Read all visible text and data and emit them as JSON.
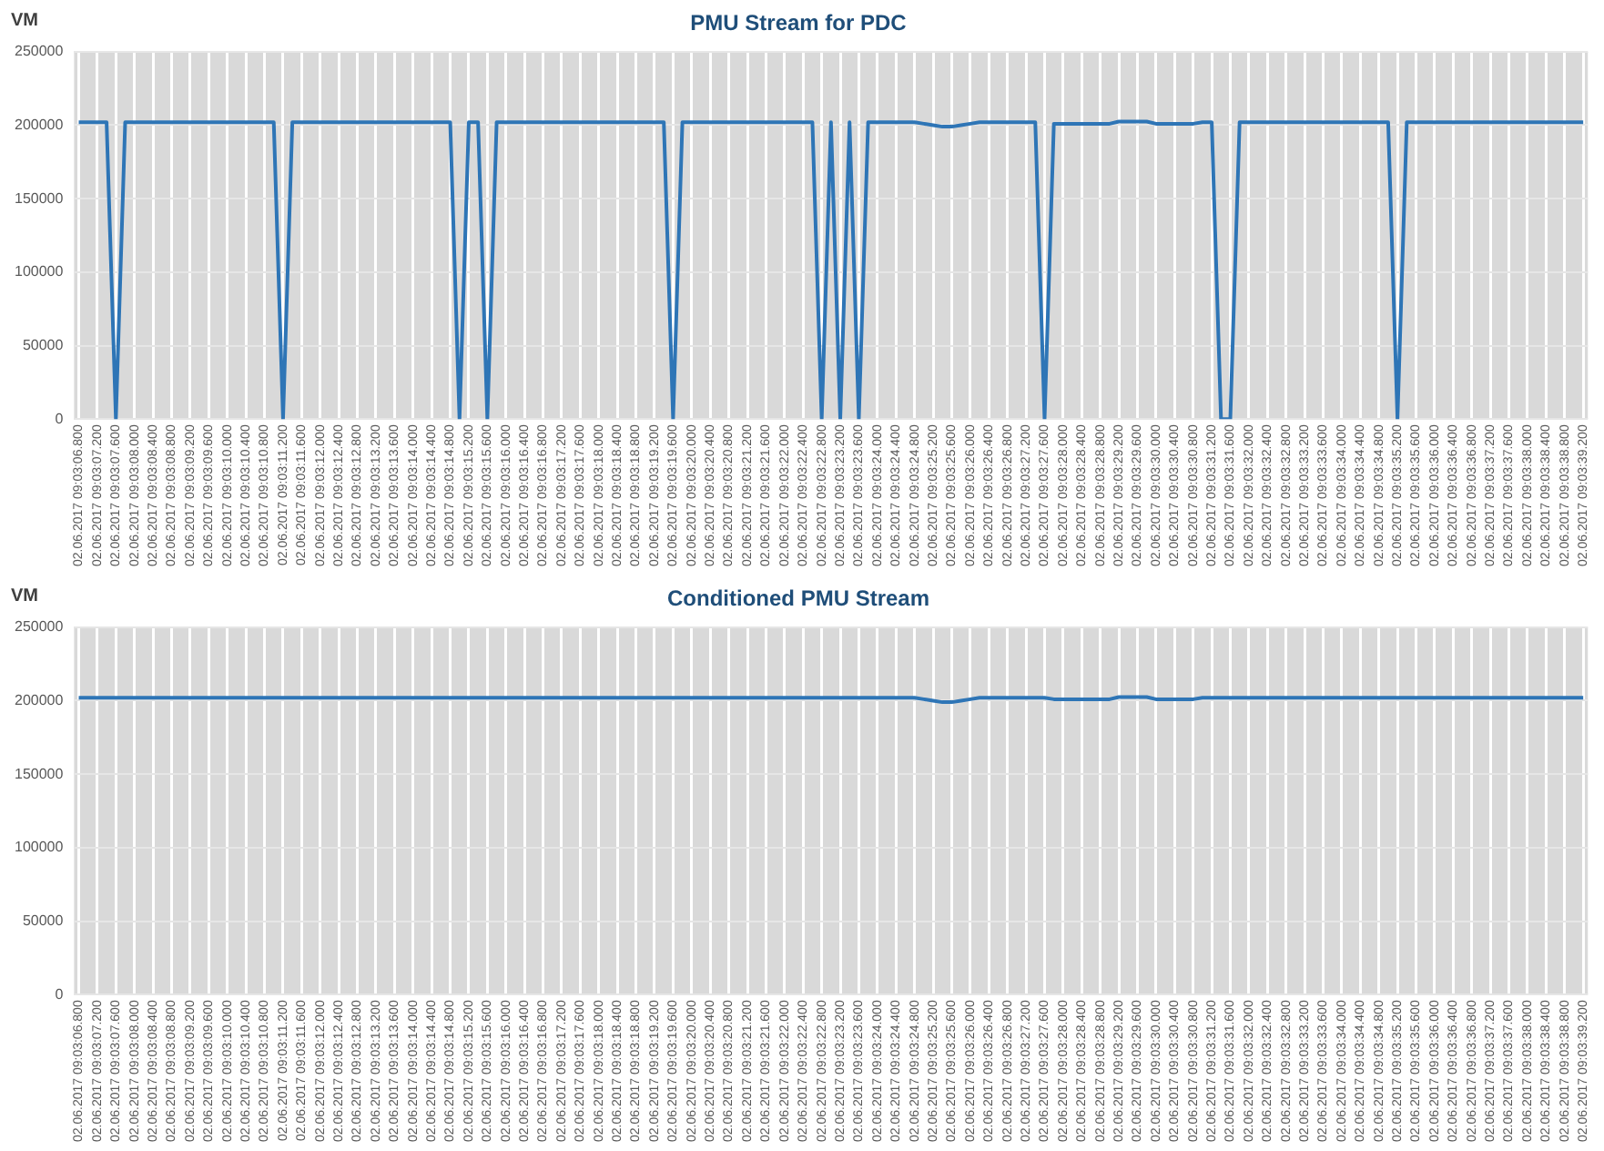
{
  "chart_data": [
    {
      "type": "line",
      "title": "PMU Stream for PDC",
      "ylabel": "VM",
      "ylim": [
        0,
        250000
      ],
      "yticks": [
        0,
        50000,
        100000,
        150000,
        200000,
        250000
      ],
      "grid": true,
      "categories": [
        "02.06.2017 09:03:06.800",
        null,
        "02.06.2017 09:03:07.200",
        null,
        "02.06.2017 09:03:07.600",
        null,
        "02.06.2017 09:03:08.000",
        null,
        "02.06.2017 09:03:08.400",
        null,
        "02.06.2017 09:03:08.800",
        null,
        "02.06.2017 09:03:09.200",
        null,
        "02.06.2017 09:03:09.600",
        null,
        "02.06.2017 09:03:10.000",
        null,
        "02.06.2017 09:03:10.400",
        null,
        "02.06.2017 09:03:10.800",
        null,
        "02.06.2017 09:03:11.200",
        null,
        "02.06.2017 09:03:11.600",
        null,
        "02.06.2017 09:03:12.000",
        null,
        "02.06.2017 09:03:12.400",
        null,
        "02.06.2017 09:03:12.800",
        null,
        "02.06.2017 09:03:13.200",
        null,
        "02.06.2017 09:03:13.600",
        null,
        "02.06.2017 09:03:14.000",
        null,
        "02.06.2017 09:03:14.400",
        null,
        "02.06.2017 09:03:14.800",
        null,
        "02.06.2017 09:03:15.200",
        null,
        "02.06.2017 09:03:15.600",
        null,
        "02.06.2017 09:03:16.000",
        null,
        "02.06.2017 09:03:16.400",
        null,
        "02.06.2017 09:03:16.800",
        null,
        "02.06.2017 09:03:17.200",
        null,
        "02.06.2017 09:03:17.600",
        null,
        "02.06.2017 09:03:18.000",
        null,
        "02.06.2017 09:03:18.400",
        null,
        "02.06.2017 09:03:18.800",
        null,
        "02.06.2017 09:03:19.200",
        null,
        "02.06.2017 09:03:19.600",
        null,
        "02.06.2017 09:03:20.000",
        null,
        "02.06.2017 09:03:20.400",
        null,
        "02.06.2017 09:03:20.800",
        null,
        "02.06.2017 09:03:21.200",
        null,
        "02.06.2017 09:03:21.600",
        null,
        "02.06.2017 09:03:22.000",
        null,
        "02.06.2017 09:03:22.400",
        null,
        "02.06.2017 09:03:22.800",
        null,
        "02.06.2017 09:03:23.200",
        null,
        "02.06.2017 09:03:23.600",
        null,
        "02.06.2017 09:03:24.000",
        null,
        "02.06.2017 09:03:24.400",
        null,
        "02.06.2017 09:03:24.800",
        null,
        "02.06.2017 09:03:25.200",
        null,
        "02.06.2017 09:03:25.600",
        null,
        "02.06.2017 09:03:26.000",
        null,
        "02.06.2017 09:03:26.400",
        null,
        "02.06.2017 09:03:26.800",
        null,
        "02.06.2017 09:03:27.200",
        null,
        "02.06.2017 09:03:27.600",
        null,
        "02.06.2017 09:03:28.000",
        null,
        "02.06.2017 09:03:28.400",
        null,
        "02.06.2017 09:03:28.800",
        null,
        "02.06.2017 09:03:29.200",
        null,
        "02.06.2017 09:03:29.600",
        null,
        "02.06.2017 09:03:30.000",
        null,
        "02.06.2017 09:03:30.400",
        null,
        "02.06.2017 09:03:30.800",
        null,
        "02.06.2017 09:03:31.200",
        null,
        "02.06.2017 09:03:31.600",
        null,
        "02.06.2017 09:03:32.000",
        null,
        "02.06.2017 09:03:32.400",
        null,
        "02.06.2017 09:03:32.800",
        null,
        "02.06.2017 09:03:33.200",
        null,
        "02.06.2017 09:03:33.600",
        null,
        "02.06.2017 09:03:34.000",
        null,
        "02.06.2017 09:03:34.400",
        null,
        "02.06.2017 09:03:34.800",
        null,
        "02.06.2017 09:03:35.200",
        null,
        "02.06.2017 09:03:35.600",
        null,
        "02.06.2017 09:03:36.000",
        null,
        "02.06.2017 09:03:36.400",
        null,
        "02.06.2017 09:03:36.800",
        null,
        "02.06.2017 09:03:37.200",
        null,
        "02.06.2017 09:03:37.600",
        null,
        "02.06.2017 09:03:38.000",
        null,
        "02.06.2017 09:03:38.400",
        null,
        "02.06.2017 09:03:38.800",
        null,
        "02.06.2017 09:03:39.200"
      ],
      "series": [
        {
          "color": "#2e75b6",
          "values": [
            202000,
            202000,
            202000,
            202000,
            0,
            202000,
            202000,
            202000,
            202000,
            202000,
            202000,
            202000,
            202000,
            202000,
            202000,
            202000,
            202000,
            202000,
            202000,
            202000,
            202000,
            202000,
            0,
            202000,
            202000,
            202000,
            202000,
            202000,
            202000,
            202000,
            202000,
            202000,
            202000,
            202000,
            202000,
            202000,
            202000,
            202000,
            202000,
            202000,
            202000,
            0,
            202000,
            202000,
            0,
            202000,
            202000,
            202000,
            202000,
            202000,
            202000,
            202000,
            202000,
            202000,
            202000,
            202000,
            202000,
            202000,
            202000,
            202000,
            202000,
            202000,
            202000,
            202000,
            0,
            202000,
            202000,
            202000,
            202000,
            202000,
            202000,
            202000,
            202000,
            202000,
            202000,
            202000,
            202000,
            202000,
            202000,
            202000,
            0,
            202000,
            0,
            202000,
            0,
            202000,
            202000,
            202000,
            202000,
            202000,
            202000,
            201000,
            200000,
            199000,
            199000,
            200000,
            201000,
            202000,
            202000,
            202000,
            202000,
            202000,
            202000,
            202000,
            0,
            201000,
            201000,
            201000,
            201000,
            201000,
            201000,
            201000,
            202500,
            202500,
            202500,
            202500,
            201000,
            201000,
            201000,
            201000,
            201000,
            202000,
            202000,
            0,
            0,
            202000,
            202000,
            202000,
            202000,
            202000,
            202000,
            202000,
            202000,
            202000,
            202000,
            202000,
            202000,
            202000,
            202000,
            202000,
            202000,
            202000,
            0,
            202000,
            202000,
            202000,
            202000,
            202000,
            202000,
            202000,
            202000,
            202000,
            202000,
            202000,
            202000,
            202000,
            202000,
            202000,
            202000,
            202000,
            202000,
            202000,
            202000
          ]
        }
      ]
    },
    {
      "type": "line",
      "title": "Conditioned PMU Stream",
      "ylabel": "VM",
      "ylim": [
        0,
        250000
      ],
      "yticks": [
        0,
        50000,
        100000,
        150000,
        200000,
        250000
      ],
      "grid": true,
      "categories": [
        "02.06.2017 09:03:06.800",
        null,
        "02.06.2017 09:03:07.200",
        null,
        "02.06.2017 09:03:07.600",
        null,
        "02.06.2017 09:03:08.000",
        null,
        "02.06.2017 09:03:08.400",
        null,
        "02.06.2017 09:03:08.800",
        null,
        "02.06.2017 09:03:09.200",
        null,
        "02.06.2017 09:03:09.600",
        null,
        "02.06.2017 09:03:10.000",
        null,
        "02.06.2017 09:03:10.400",
        null,
        "02.06.2017 09:03:10.800",
        null,
        "02.06.2017 09:03:11.200",
        null,
        "02.06.2017 09:03:11.600",
        null,
        "02.06.2017 09:03:12.000",
        null,
        "02.06.2017 09:03:12.400",
        null,
        "02.06.2017 09:03:12.800",
        null,
        "02.06.2017 09:03:13.200",
        null,
        "02.06.2017 09:03:13.600",
        null,
        "02.06.2017 09:03:14.000",
        null,
        "02.06.2017 09:03:14.400",
        null,
        "02.06.2017 09:03:14.800",
        null,
        "02.06.2017 09:03:15.200",
        null,
        "02.06.2017 09:03:15.600",
        null,
        "02.06.2017 09:03:16.000",
        null,
        "02.06.2017 09:03:16.400",
        null,
        "02.06.2017 09:03:16.800",
        null,
        "02.06.2017 09:03:17.200",
        null,
        "02.06.2017 09:03:17.600",
        null,
        "02.06.2017 09:03:18.000",
        null,
        "02.06.2017 09:03:18.400",
        null,
        "02.06.2017 09:03:18.800",
        null,
        "02.06.2017 09:03:19.200",
        null,
        "02.06.2017 09:03:19.600",
        null,
        "02.06.2017 09:03:20.000",
        null,
        "02.06.2017 09:03:20.400",
        null,
        "02.06.2017 09:03:20.800",
        null,
        "02.06.2017 09:03:21.200",
        null,
        "02.06.2017 09:03:21.600",
        null,
        "02.06.2017 09:03:22.000",
        null,
        "02.06.2017 09:03:22.400",
        null,
        "02.06.2017 09:03:22.800",
        null,
        "02.06.2017 09:03:23.200",
        null,
        "02.06.2017 09:03:23.600",
        null,
        "02.06.2017 09:03:24.000",
        null,
        "02.06.2017 09:03:24.400",
        null,
        "02.06.2017 09:03:24.800",
        null,
        "02.06.2017 09:03:25.200",
        null,
        "02.06.2017 09:03:25.600",
        null,
        "02.06.2017 09:03:26.000",
        null,
        "02.06.2017 09:03:26.400",
        null,
        "02.06.2017 09:03:26.800",
        null,
        "02.06.2017 09:03:27.200",
        null,
        "02.06.2017 09:03:27.600",
        null,
        "02.06.2017 09:03:28.000",
        null,
        "02.06.2017 09:03:28.400",
        null,
        "02.06.2017 09:03:28.800",
        null,
        "02.06.2017 09:03:29.200",
        null,
        "02.06.2017 09:03:29.600",
        null,
        "02.06.2017 09:03:30.000",
        null,
        "02.06.2017 09:03:30.400",
        null,
        "02.06.2017 09:03:30.800",
        null,
        "02.06.2017 09:03:31.200",
        null,
        "02.06.2017 09:03:31.600",
        null,
        "02.06.2017 09:03:32.000",
        null,
        "02.06.2017 09:03:32.400",
        null,
        "02.06.2017 09:03:32.800",
        null,
        "02.06.2017 09:03:33.200",
        null,
        "02.06.2017 09:03:33.600",
        null,
        "02.06.2017 09:03:34.000",
        null,
        "02.06.2017 09:03:34.400",
        null,
        "02.06.2017 09:03:34.800",
        null,
        "02.06.2017 09:03:35.200",
        null,
        "02.06.2017 09:03:35.600",
        null,
        "02.06.2017 09:03:36.000",
        null,
        "02.06.2017 09:03:36.400",
        null,
        "02.06.2017 09:03:36.800",
        null,
        "02.06.2017 09:03:37.200",
        null,
        "02.06.2017 09:03:37.600",
        null,
        "02.06.2017 09:03:38.000",
        null,
        "02.06.2017 09:03:38.400",
        null,
        "02.06.2017 09:03:38.800",
        null,
        "02.06.2017 09:03:39.200"
      ],
      "series": [
        {
          "color": "#2e75b6",
          "values": [
            202000,
            202000,
            202000,
            202000,
            202000,
            202000,
            202000,
            202000,
            202000,
            202000,
            202000,
            202000,
            202000,
            202000,
            202000,
            202000,
            202000,
            202000,
            202000,
            202000,
            202000,
            202000,
            202000,
            202000,
            202000,
            202000,
            202000,
            202000,
            202000,
            202000,
            202000,
            202000,
            202000,
            202000,
            202000,
            202000,
            202000,
            202000,
            202000,
            202000,
            202000,
            202000,
            202000,
            202000,
            202000,
            202000,
            202000,
            202000,
            202000,
            202000,
            202000,
            202000,
            202000,
            202000,
            202000,
            202000,
            202000,
            202000,
            202000,
            202000,
            202000,
            202000,
            202000,
            202000,
            202000,
            202000,
            202000,
            202000,
            202000,
            202000,
            202000,
            202000,
            202000,
            202000,
            202000,
            202000,
            202000,
            202000,
            202000,
            202000,
            202000,
            202000,
            202000,
            202000,
            202000,
            202000,
            202000,
            202000,
            202000,
            202000,
            202000,
            201000,
            200000,
            199000,
            199000,
            200000,
            201000,
            202000,
            202000,
            202000,
            202000,
            202000,
            202000,
            202000,
            202000,
            201000,
            201000,
            201000,
            201000,
            201000,
            201000,
            201000,
            202500,
            202500,
            202500,
            202500,
            201000,
            201000,
            201000,
            201000,
            201000,
            202000,
            202000,
            202000,
            202000,
            202000,
            202000,
            202000,
            202000,
            202000,
            202000,
            202000,
            202000,
            202000,
            202000,
            202000,
            202000,
            202000,
            202000,
            202000,
            202000,
            202000,
            202000,
            202000,
            202000,
            202000,
            202000,
            202000,
            202000,
            202000,
            202000,
            202000,
            202000,
            202000,
            202000,
            202000,
            202000,
            202000,
            202000,
            202000,
            202000,
            202000,
            202000
          ]
        }
      ]
    }
  ]
}
